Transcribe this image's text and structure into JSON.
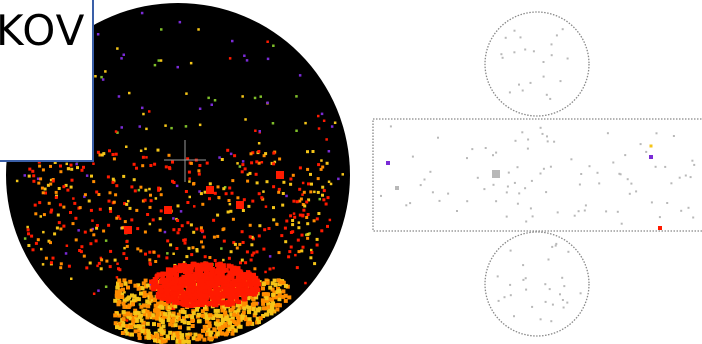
{
  "label": {
    "text": "KOV"
  },
  "colors": {
    "background": "#ffffff",
    "circle_fill": "#000000",
    "box_border": "#3a5fa8",
    "detector_outline": "#888888",
    "hit_gray": "#b8b8b8",
    "hit_red": "#ff1a00",
    "hit_orange": "#ff8c00",
    "hit_yellow": "#f5c518",
    "hit_purple": "#7a2bd6",
    "hit_green": "#7fbf2a",
    "crosshair": "#9a9a9a"
  }
}
